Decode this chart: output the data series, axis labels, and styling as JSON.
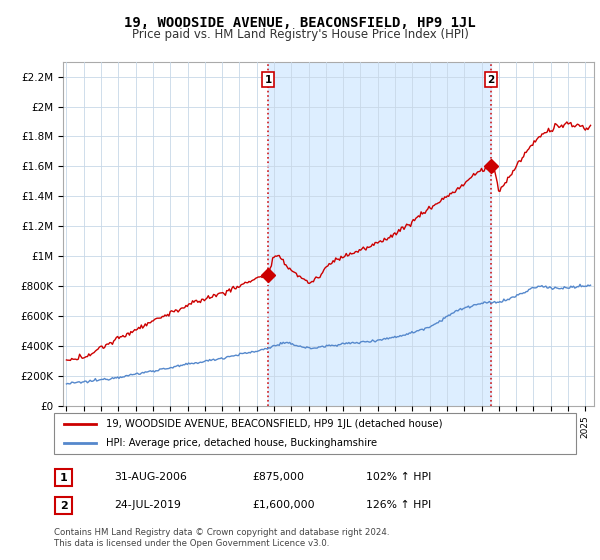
{
  "title": "19, WOODSIDE AVENUE, BEACONSFIELD, HP9 1JL",
  "subtitle": "Price paid vs. HM Land Registry's House Price Index (HPI)",
  "title_fontsize": 10,
  "subtitle_fontsize": 8.5,
  "bg_color": "#ffffff",
  "plot_bg_color": "#ffffff",
  "fill_bg_color": "#ddeeff",
  "grid_color": "#c8d8e8",
  "line1_color": "#cc0000",
  "line2_color": "#5588cc",
  "ylabel_ticks": [
    "£0",
    "£200K",
    "£400K",
    "£600K",
    "£800K",
    "£1M",
    "£1.2M",
    "£1.4M",
    "£1.6M",
    "£1.8M",
    "£2M",
    "£2.2M"
  ],
  "ytick_values": [
    0,
    200000,
    400000,
    600000,
    800000,
    1000000,
    1200000,
    1400000,
    1600000,
    1800000,
    2000000,
    2200000
  ],
  "ylim": [
    0,
    2300000
  ],
  "xlim_start": 1994.8,
  "xlim_end": 2025.5,
  "sale1_x": 2006.667,
  "sale1_y": 875000,
  "sale2_x": 2019.55,
  "sale2_y": 1600000,
  "sale1_label": "1",
  "sale2_label": "2",
  "footnote": "Contains HM Land Registry data © Crown copyright and database right 2024.\nThis data is licensed under the Open Government Licence v3.0.",
  "legend_line1": "19, WOODSIDE AVENUE, BEACONSFIELD, HP9 1JL (detached house)",
  "legend_line2": "HPI: Average price, detached house, Buckinghamshire",
  "table_row1": [
    "1",
    "31-AUG-2006",
    "£875,000",
    "102% ↑ HPI"
  ],
  "table_row2": [
    "2",
    "24-JUL-2019",
    "£1,600,000",
    "126% ↑ HPI"
  ]
}
